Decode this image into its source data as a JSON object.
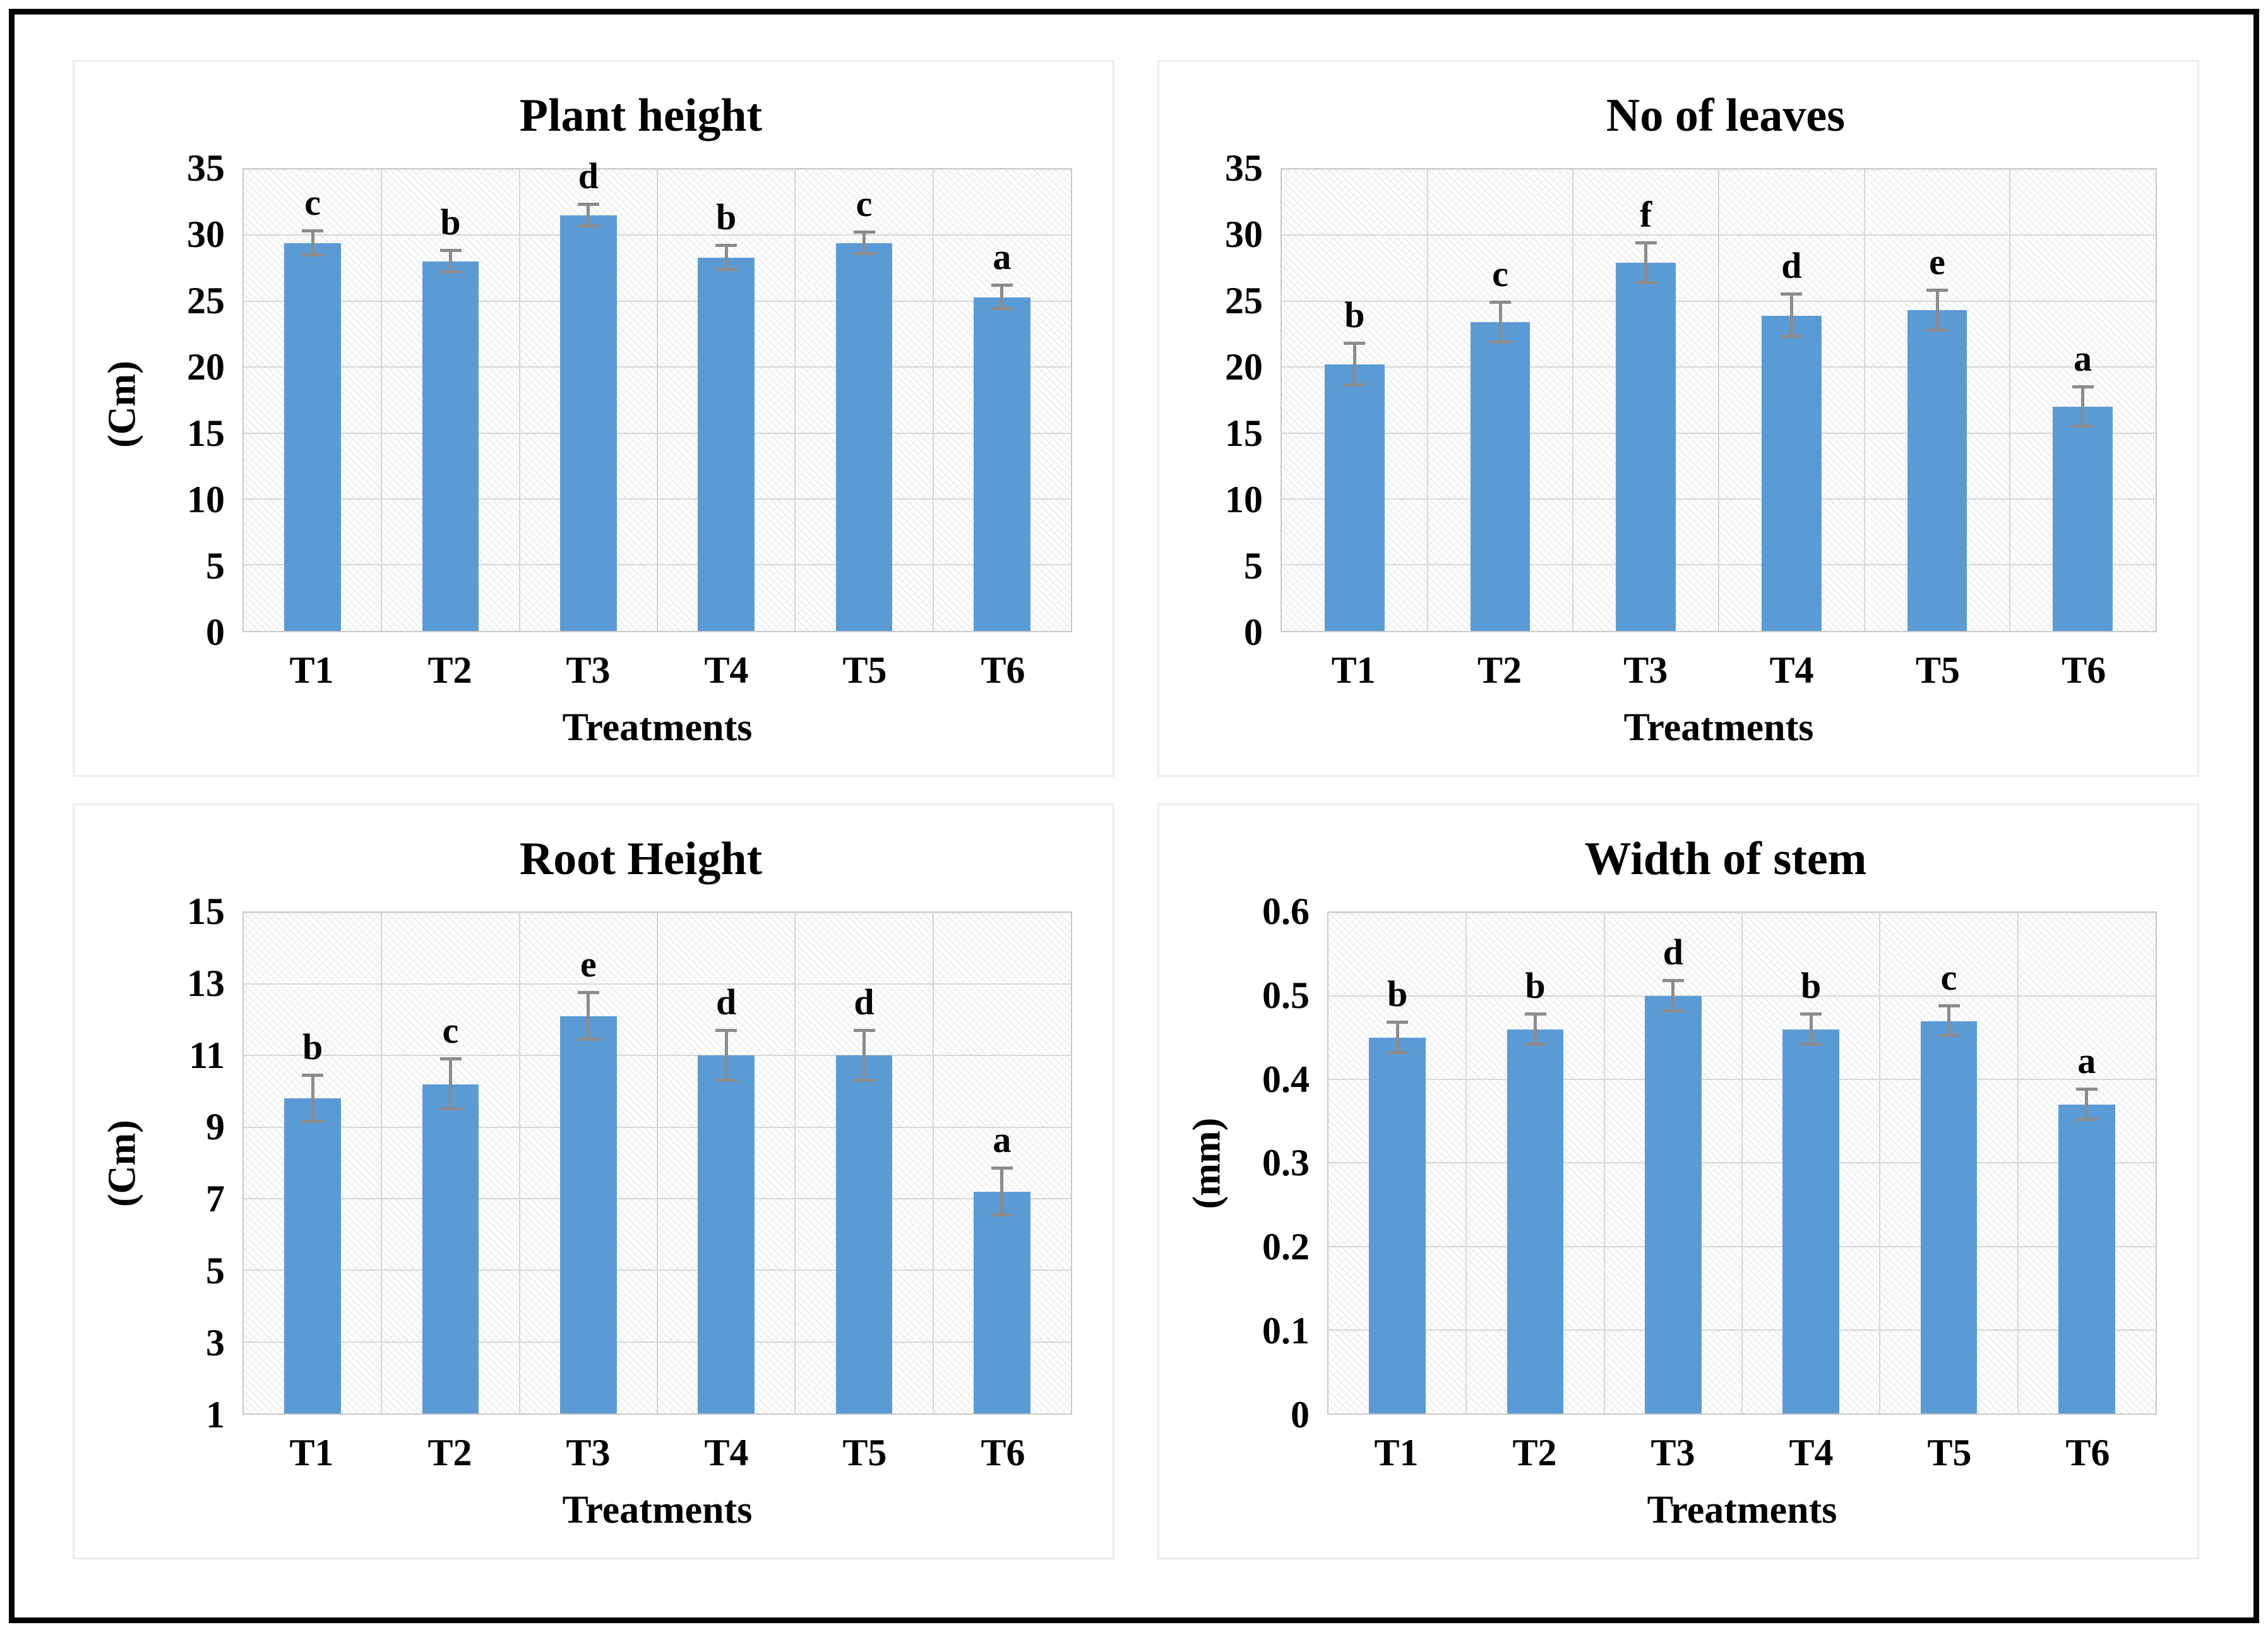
{
  "figure": {
    "description": "Four bar charts of plant growth parameters across six treatments",
    "x_axis_title": "Treatments",
    "categories": [
      "T1",
      "T2",
      "T3",
      "T4",
      "T5",
      "T6"
    ]
  },
  "palette": {
    "bar": "#5B9BD5",
    "error_bar": "#8B8B8B",
    "gridline": "#D7D7D7",
    "plot_border": "#C9C9C9",
    "frame_border": "#000000"
  },
  "chart_data": [
    {
      "type": "bar",
      "title": "Plant height",
      "ylabel": "(Cm)",
      "xlabel": "Treatments",
      "categories": [
        "T1",
        "T2",
        "T3",
        "T4",
        "T5",
        "T6"
      ],
      "values": [
        29.4,
        28.0,
        31.5,
        28.3,
        29.4,
        25.3
      ],
      "errors": [
        0.9,
        0.8,
        0.8,
        0.9,
        0.8,
        0.9
      ],
      "sig_letters": [
        "c",
        "b",
        "d",
        "b",
        "c",
        "a"
      ],
      "ymin": 0,
      "ymax": 35,
      "yticks": [
        {
          "value": 0,
          "label": "0"
        },
        {
          "value": 5,
          "label": "5"
        },
        {
          "value": 10,
          "label": "10"
        },
        {
          "value": 15,
          "label": "15"
        },
        {
          "value": 20,
          "label": "20"
        },
        {
          "value": 25,
          "label": "25"
        },
        {
          "value": 30,
          "label": "30"
        },
        {
          "value": 35,
          "label": "35"
        }
      ],
      "grid": true,
      "legend": false,
      "bar_color": "#5B9BD5"
    },
    {
      "type": "bar",
      "title": "No of leaves",
      "ylabel": "",
      "xlabel": "Treatments",
      "categories": [
        "T1",
        "T2",
        "T3",
        "T4",
        "T5",
        "T6"
      ],
      "values": [
        20.2,
        23.4,
        27.9,
        23.9,
        24.3,
        17.0
      ],
      "errors": [
        1.6,
        1.5,
        1.5,
        1.6,
        1.5,
        1.5
      ],
      "sig_letters": [
        "b",
        "c",
        "f",
        "d",
        "e",
        "a"
      ],
      "ymin": 0,
      "ymax": 35,
      "yticks": [
        {
          "value": 0,
          "label": "0"
        },
        {
          "value": 5,
          "label": "5"
        },
        {
          "value": 10,
          "label": "10"
        },
        {
          "value": 15,
          "label": "15"
        },
        {
          "value": 20,
          "label": "20"
        },
        {
          "value": 25,
          "label": "25"
        },
        {
          "value": 30,
          "label": "30"
        },
        {
          "value": 35,
          "label": "35"
        }
      ],
      "grid": true,
      "legend": false,
      "bar_color": "#5B9BD5"
    },
    {
      "type": "bar",
      "title": "Root Height",
      "ylabel": "(Cm)",
      "xlabel": "Treatments",
      "categories": [
        "T1",
        "T2",
        "T3",
        "T4",
        "T5",
        "T6"
      ],
      "values": [
        9.8,
        10.2,
        12.1,
        11.0,
        11.0,
        7.2
      ],
      "errors": [
        0.65,
        0.7,
        0.65,
        0.7,
        0.7,
        0.65
      ],
      "sig_letters": [
        "b",
        "c",
        "e",
        "d",
        "d",
        "a"
      ],
      "ymin": 1,
      "ymax": 15,
      "yticks": [
        {
          "value": 1,
          "label": "1"
        },
        {
          "value": 3,
          "label": "3"
        },
        {
          "value": 5,
          "label": "5"
        },
        {
          "value": 7,
          "label": "7"
        },
        {
          "value": 9,
          "label": "9"
        },
        {
          "value": 11,
          "label": "11"
        },
        {
          "value": 13,
          "label": "13"
        },
        {
          "value": 15,
          "label": "15"
        }
      ],
      "grid": true,
      "legend": false,
      "bar_color": "#5B9BD5"
    },
    {
      "type": "bar",
      "title": "Width of stem",
      "ylabel": "(mm)",
      "xlabel": "Treatments",
      "categories": [
        "T1",
        "T2",
        "T3",
        "T4",
        "T5",
        "T6"
      ],
      "values": [
        0.45,
        0.46,
        0.5,
        0.46,
        0.47,
        0.37
      ],
      "errors": [
        0.018,
        0.018,
        0.018,
        0.018,
        0.018,
        0.018
      ],
      "sig_letters": [
        "b",
        "b",
        "d",
        "b",
        "c",
        "a"
      ],
      "ymin": 0,
      "ymax": 0.6,
      "yticks": [
        {
          "value": 0,
          "label": "0"
        },
        {
          "value": 0.1,
          "label": "0.1"
        },
        {
          "value": 0.2,
          "label": "0.2"
        },
        {
          "value": 0.3,
          "label": "0.3"
        },
        {
          "value": 0.4,
          "label": "0.4"
        },
        {
          "value": 0.5,
          "label": "0.5"
        },
        {
          "value": 0.6,
          "label": "0.6"
        }
      ],
      "grid": true,
      "legend": false,
      "bar_color": "#5B9BD5"
    }
  ]
}
